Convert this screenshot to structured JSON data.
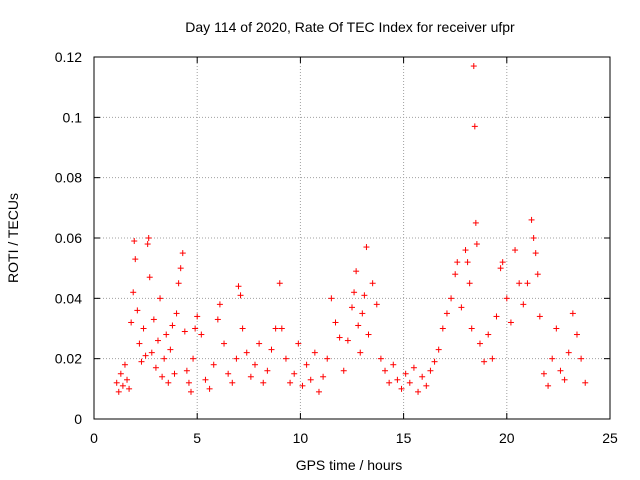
{
  "chart_data": {
    "type": "scatter",
    "title": "Day 114 of 2020, Rate Of TEC Index for receiver ufpr",
    "xlabel": "GPS time / hours",
    "ylabel": "ROTI / TECUs",
    "xlim": [
      0,
      25
    ],
    "ylim": [
      0,
      0.12
    ],
    "xticks": [
      "0",
      "5",
      "10",
      "15",
      "20",
      "25"
    ],
    "xtick_values": [
      0,
      5,
      10,
      15,
      20,
      25
    ],
    "yticks": [
      "0",
      "0.02",
      "0.04",
      "0.06",
      "0.08",
      "0.1",
      "0.12"
    ],
    "ytick_values": [
      0,
      0.02,
      0.04,
      0.06,
      0.08,
      0.1,
      0.12
    ],
    "grid": true,
    "marker": "+",
    "marker_color": "#ff0000",
    "series": [
      {
        "name": "ROTI",
        "points": [
          [
            1.1,
            0.012
          ],
          [
            1.2,
            0.009
          ],
          [
            1.3,
            0.015
          ],
          [
            1.4,
            0.011
          ],
          [
            1.5,
            0.018
          ],
          [
            1.6,
            0.013
          ],
          [
            1.7,
            0.01
          ],
          [
            1.8,
            0.032
          ],
          [
            1.9,
            0.042
          ],
          [
            1.95,
            0.059
          ],
          [
            2.0,
            0.053
          ],
          [
            2.1,
            0.036
          ],
          [
            2.2,
            0.025
          ],
          [
            2.3,
            0.019
          ],
          [
            2.4,
            0.03
          ],
          [
            2.5,
            0.021
          ],
          [
            2.6,
            0.058
          ],
          [
            2.65,
            0.06
          ],
          [
            2.7,
            0.047
          ],
          [
            2.8,
            0.022
          ],
          [
            2.9,
            0.033
          ],
          [
            3.0,
            0.017
          ],
          [
            3.1,
            0.026
          ],
          [
            3.2,
            0.04
          ],
          [
            3.3,
            0.014
          ],
          [
            3.4,
            0.02
          ],
          [
            3.5,
            0.028
          ],
          [
            3.6,
            0.012
          ],
          [
            3.7,
            0.023
          ],
          [
            3.8,
            0.031
          ],
          [
            3.9,
            0.015
          ],
          [
            4.0,
            0.035
          ],
          [
            4.1,
            0.045
          ],
          [
            4.2,
            0.05
          ],
          [
            4.3,
            0.055
          ],
          [
            4.4,
            0.029
          ],
          [
            4.5,
            0.016
          ],
          [
            4.6,
            0.012
          ],
          [
            4.7,
            0.009
          ],
          [
            4.8,
            0.02
          ],
          [
            4.9,
            0.03
          ],
          [
            5.0,
            0.034
          ],
          [
            5.2,
            0.028
          ],
          [
            5.4,
            0.013
          ],
          [
            5.6,
            0.01
          ],
          [
            5.8,
            0.018
          ],
          [
            6.0,
            0.033
          ],
          [
            6.1,
            0.038
          ],
          [
            6.3,
            0.025
          ],
          [
            6.5,
            0.015
          ],
          [
            6.7,
            0.012
          ],
          [
            6.9,
            0.02
          ],
          [
            7.0,
            0.044
          ],
          [
            7.1,
            0.041
          ],
          [
            7.2,
            0.03
          ],
          [
            7.4,
            0.022
          ],
          [
            7.6,
            0.014
          ],
          [
            7.8,
            0.018
          ],
          [
            8.0,
            0.025
          ],
          [
            8.2,
            0.012
          ],
          [
            8.4,
            0.016
          ],
          [
            8.6,
            0.023
          ],
          [
            8.8,
            0.03
          ],
          [
            9.0,
            0.045
          ],
          [
            9.1,
            0.03
          ],
          [
            9.3,
            0.02
          ],
          [
            9.5,
            0.012
          ],
          [
            9.7,
            0.015
          ],
          [
            9.9,
            0.025
          ],
          [
            10.1,
            0.011
          ],
          [
            10.3,
            0.018
          ],
          [
            10.5,
            0.013
          ],
          [
            10.7,
            0.022
          ],
          [
            10.9,
            0.009
          ],
          [
            11.1,
            0.014
          ],
          [
            11.3,
            0.02
          ],
          [
            11.5,
            0.04
          ],
          [
            11.7,
            0.032
          ],
          [
            11.9,
            0.027
          ],
          [
            12.1,
            0.016
          ],
          [
            12.3,
            0.026
          ],
          [
            12.5,
            0.037
          ],
          [
            12.6,
            0.042
          ],
          [
            12.7,
            0.049
          ],
          [
            12.8,
            0.031
          ],
          [
            12.9,
            0.022
          ],
          [
            13.0,
            0.035
          ],
          [
            13.1,
            0.041
          ],
          [
            13.2,
            0.057
          ],
          [
            13.3,
            0.028
          ],
          [
            13.5,
            0.045
          ],
          [
            13.7,
            0.038
          ],
          [
            13.9,
            0.02
          ],
          [
            14.1,
            0.016
          ],
          [
            14.3,
            0.012
          ],
          [
            14.5,
            0.018
          ],
          [
            14.7,
            0.013
          ],
          [
            14.9,
            0.01
          ],
          [
            15.1,
            0.015
          ],
          [
            15.3,
            0.012
          ],
          [
            15.5,
            0.017
          ],
          [
            15.7,
            0.009
          ],
          [
            15.9,
            0.014
          ],
          [
            16.1,
            0.011
          ],
          [
            16.3,
            0.016
          ],
          [
            16.5,
            0.019
          ],
          [
            16.7,
            0.023
          ],
          [
            16.9,
            0.03
          ],
          [
            17.1,
            0.035
          ],
          [
            17.3,
            0.04
          ],
          [
            17.5,
            0.048
          ],
          [
            17.6,
            0.052
          ],
          [
            17.8,
            0.037
          ],
          [
            18.0,
            0.056
          ],
          [
            18.1,
            0.052
          ],
          [
            18.2,
            0.045
          ],
          [
            18.3,
            0.03
          ],
          [
            18.4,
            0.117
          ],
          [
            18.45,
            0.097
          ],
          [
            18.5,
            0.065
          ],
          [
            18.55,
            0.058
          ],
          [
            18.7,
            0.025
          ],
          [
            18.9,
            0.019
          ],
          [
            19.1,
            0.028
          ],
          [
            19.3,
            0.02
          ],
          [
            19.5,
            0.034
          ],
          [
            19.7,
            0.05
          ],
          [
            19.8,
            0.052
          ],
          [
            20.0,
            0.04
          ],
          [
            20.2,
            0.032
          ],
          [
            20.4,
            0.056
          ],
          [
            20.6,
            0.045
          ],
          [
            20.8,
            0.038
          ],
          [
            21.0,
            0.045
          ],
          [
            21.2,
            0.066
          ],
          [
            21.3,
            0.06
          ],
          [
            21.4,
            0.055
          ],
          [
            21.5,
            0.048
          ],
          [
            21.6,
            0.034
          ],
          [
            21.8,
            0.015
          ],
          [
            22.0,
            0.011
          ],
          [
            22.2,
            0.02
          ],
          [
            22.4,
            0.03
          ],
          [
            22.6,
            0.016
          ],
          [
            22.8,
            0.013
          ],
          [
            23.0,
            0.022
          ],
          [
            23.2,
            0.035
          ],
          [
            23.4,
            0.028
          ],
          [
            23.6,
            0.02
          ],
          [
            23.8,
            0.012
          ]
        ]
      }
    ]
  }
}
